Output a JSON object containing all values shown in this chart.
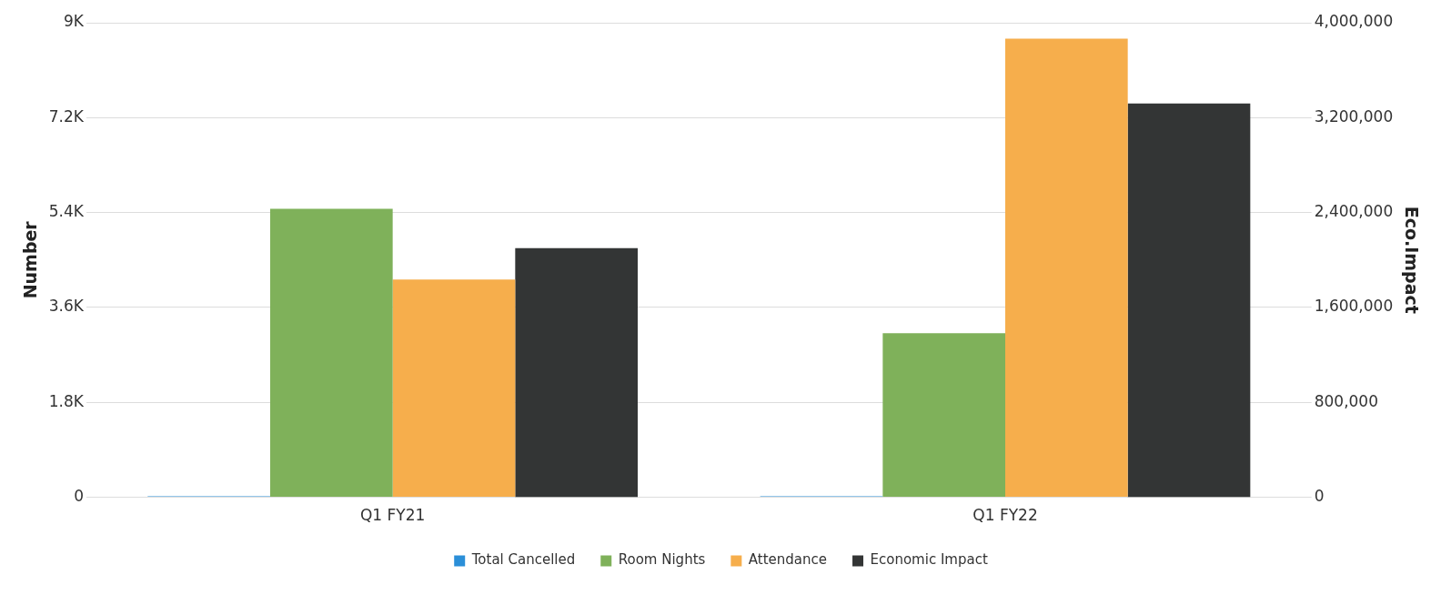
{
  "chart_data": {
    "type": "bar",
    "categories": [
      "Q1 FY21",
      "Q1 FY22"
    ],
    "ylabel": "Number",
    "y2label": "Eco.Impact",
    "series": [
      {
        "name": "Total Cancelled",
        "color": "#2b8fd8",
        "values": [
          20,
          20
        ]
      },
      {
        "name": "Room Nights",
        "color": "#7fb15a",
        "values": [
          5470,
          3110
        ]
      },
      {
        "name": "Attendance",
        "color": "#f6ae4c",
        "values": [
          4130,
          8700
        ]
      },
      {
        "name": "Economic Impact",
        "color": "#333535",
        "values": [
          2100000,
          3320000
        ],
        "axis": "y2"
      }
    ],
    "ylim": [
      0,
      9000
    ],
    "yticks": [
      0,
      {
        "value": 1800,
        "label": "1.8K"
      },
      {
        "value": 3600,
        "label": "3.6K"
      },
      {
        "value": 5400,
        "label": "5.4K"
      },
      {
        "value": 7200,
        "label": "7.2K"
      },
      {
        "value": 9000,
        "label": "9K"
      }
    ],
    "y2lim": [
      0,
      4000000
    ],
    "y2ticks": [
      0,
      {
        "value": 800000,
        "label": "800,000"
      },
      {
        "value": 1600000,
        "label": "1,600,000"
      },
      {
        "value": 2400000,
        "label": "2,400,000"
      },
      {
        "value": 3200000,
        "label": "3,200,000"
      },
      {
        "value": 4000000,
        "label": "4,000,000"
      }
    ],
    "grid": "y",
    "legend": "bottom"
  }
}
